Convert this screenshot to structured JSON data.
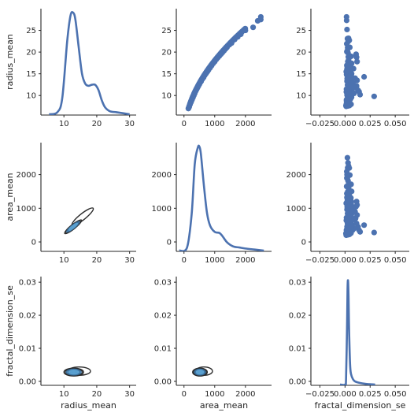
{
  "chart_data": {
    "type": "pairgrid",
    "title": "",
    "variables": [
      "radius_mean",
      "area_mean",
      "fractal_dimension_se"
    ],
    "xlabels": [
      "radius_mean",
      "area_mean",
      "fractal_dimension_se"
    ],
    "ylabels": [
      "radius_mean",
      "area_mean",
      "fractal_dimension_se"
    ],
    "color": "#4c72b0",
    "axis_color": "#262626",
    "xaxes": [
      {
        "lim": [
          3,
          32
        ],
        "ticks": [
          10,
          20,
          30
        ],
        "ticklabels": [
          "10",
          "20",
          "30"
        ]
      },
      {
        "lim": [
          -250,
          2850
        ],
        "ticks": [
          0,
          1000,
          2000
        ],
        "ticklabels": [
          "0",
          "1000",
          "2000"
        ]
      },
      {
        "lim": [
          -0.034,
          0.064
        ],
        "ticks": [
          -0.025,
          0.0,
          0.025,
          0.05
        ],
        "ticklabels": [
          "−0.025",
          "0.000",
          "0.025",
          "0.050"
        ]
      }
    ],
    "yaxes": [
      {
        "lim": [
          5.5,
          30
        ],
        "ticks": [
          10,
          15,
          20,
          25
        ],
        "ticklabels": [
          "10",
          "15",
          "20",
          "25"
        ]
      },
      {
        "lim": [
          -280,
          2950
        ],
        "ticks": [
          0,
          1000,
          2000
        ],
        "ticklabels": [
          "0",
          "1000",
          "2000"
        ]
      },
      {
        "lim": [
          -0.0012,
          0.0317
        ],
        "ticks": [
          0.0,
          0.01,
          0.02,
          0.03
        ],
        "ticklabels": [
          "0.00",
          "0.01",
          "0.02",
          "0.03"
        ]
      }
    ],
    "diagonal_kde": [
      {
        "variable": "radius_mean",
        "x": [
          5.5,
          8,
          9.5,
          11,
          12,
          12.8,
          13.5,
          14.5,
          15.5,
          16.5,
          17.5,
          18.5,
          19.5,
          20.5,
          21.5,
          22.5,
          24,
          26,
          28,
          30
        ],
        "density": [
          0.0,
          0.02,
          0.16,
          0.72,
          0.97,
          1.0,
          0.93,
          0.66,
          0.4,
          0.3,
          0.28,
          0.29,
          0.29,
          0.24,
          0.14,
          0.07,
          0.03,
          0.02,
          0.01,
          0.0
        ]
      },
      {
        "variable": "area_mean",
        "x": [
          -150,
          100,
          250,
          350,
          450,
          500,
          550,
          650,
          750,
          850,
          1000,
          1150,
          1250,
          1400,
          1600,
          1800,
          2000,
          2300,
          2600
        ],
        "density": [
          0.0,
          0.03,
          0.35,
          0.83,
          0.99,
          1.0,
          0.93,
          0.62,
          0.36,
          0.24,
          0.18,
          0.17,
          0.14,
          0.08,
          0.04,
          0.03,
          0.02,
          0.01,
          0.0
        ]
      },
      {
        "variable": "fractal_dimension_se",
        "x": [
          -0.005,
          0.0,
          0.001,
          0.002,
          0.0025,
          0.003,
          0.0035,
          0.004,
          0.005,
          0.006,
          0.008,
          0.01,
          0.015,
          0.02,
          0.025,
          0.03
        ],
        "density": [
          0.0,
          0.0,
          0.05,
          0.55,
          0.92,
          1.0,
          0.85,
          0.55,
          0.2,
          0.1,
          0.05,
          0.03,
          0.015,
          0.007,
          0.003,
          0.0
        ]
      }
    ],
    "scatter_upper": [
      {
        "x_var": "area_mean",
        "y_var": "radius_mean",
        "note": "points follow area ~ pi*r^2",
        "points": [
          [
            143,
            7.0
          ],
          [
            170,
            7.4
          ],
          [
            200,
            8.0
          ],
          [
            230,
            8.5
          ],
          [
            260,
            9.0
          ],
          [
            290,
            9.5
          ],
          [
            320,
            10.0
          ],
          [
            350,
            10.5
          ],
          [
            380,
            11.0
          ],
          [
            410,
            11.4
          ],
          [
            440,
            11.8
          ],
          [
            470,
            12.2
          ],
          [
            500,
            12.6
          ],
          [
            530,
            13.0
          ],
          [
            560,
            13.3
          ],
          [
            600,
            13.8
          ],
          [
            640,
            14.2
          ],
          [
            680,
            14.7
          ],
          [
            720,
            15.1
          ],
          [
            760,
            15.5
          ],
          [
            800,
            15.9
          ],
          [
            850,
            16.4
          ],
          [
            900,
            16.9
          ],
          [
            950,
            17.4
          ],
          [
            1000,
            17.8
          ],
          [
            1050,
            18.3
          ],
          [
            1100,
            18.7
          ],
          [
            1150,
            19.1
          ],
          [
            1200,
            19.5
          ],
          [
            1250,
            19.9
          ],
          [
            1300,
            20.3
          ],
          [
            1350,
            20.7
          ],
          [
            1400,
            21.1
          ],
          [
            1480,
            21.7
          ],
          [
            1550,
            22.1
          ],
          [
            1650,
            22.9
          ],
          [
            1750,
            23.5
          ],
          [
            1850,
            24.1
          ],
          [
            2000,
            25.0
          ],
          [
            2250,
            25.7
          ],
          [
            2400,
            27.2
          ],
          [
            2500,
            28.1
          ],
          [
            2500,
            27.5
          ]
        ]
      },
      {
        "x_var": "fractal_dimension_se",
        "y_var": "radius_mean",
        "points": [
          [
            0.0009,
            7.7
          ],
          [
            0.0015,
            9.0
          ],
          [
            0.002,
            10.1
          ],
          [
            0.0025,
            11.2
          ],
          [
            0.003,
            12.3
          ],
          [
            0.0035,
            13.0
          ],
          [
            0.004,
            14.1
          ],
          [
            0.0012,
            15.5
          ],
          [
            0.0022,
            16.6
          ],
          [
            0.0028,
            17.8
          ],
          [
            0.0033,
            18.9
          ],
          [
            0.0018,
            20.1
          ],
          [
            0.0026,
            21.0
          ],
          [
            0.003,
            22.4
          ],
          [
            0.0024,
            23.1
          ],
          [
            0.002,
            25.2
          ],
          [
            0.0016,
            27.3
          ],
          [
            0.0015,
            28.1
          ],
          [
            0.005,
            12.0
          ],
          [
            0.006,
            13.4
          ],
          [
            0.007,
            11.5
          ],
          [
            0.008,
            12.8
          ],
          [
            0.009,
            10.5
          ],
          [
            0.01,
            14.0
          ],
          [
            0.012,
            17.8
          ],
          [
            0.0115,
            18.8
          ],
          [
            0.011,
            19.5
          ],
          [
            0.012,
            13.5
          ],
          [
            0.013,
            11.2
          ],
          [
            0.0115,
            12.2
          ],
          [
            0.0085,
            16.2
          ],
          [
            0.0075,
            10.6
          ],
          [
            0.0055,
            17.0
          ],
          [
            0.0065,
            15.0
          ],
          [
            0.019,
            14.3
          ],
          [
            0.015,
            10.2
          ],
          [
            0.014,
            10.9
          ],
          [
            0.029,
            9.8
          ],
          [
            0.0045,
            8.8
          ],
          [
            0.0105,
            11.8
          ]
        ]
      },
      {
        "x_var": "fractal_dimension_se",
        "y_var": "area_mean",
        "points": [
          [
            0.0009,
            250
          ],
          [
            0.0015,
            350
          ],
          [
            0.002,
            450
          ],
          [
            0.0025,
            550
          ],
          [
            0.003,
            700
          ],
          [
            0.0035,
            850
          ],
          [
            0.004,
            1000
          ],
          [
            0.0012,
            1150
          ],
          [
            0.0022,
            1300
          ],
          [
            0.0028,
            1500
          ],
          [
            0.0033,
            1700
          ],
          [
            0.0018,
            1900
          ],
          [
            0.0026,
            2200
          ],
          [
            0.003,
            2350
          ],
          [
            0.0024,
            2500
          ],
          [
            0.002,
            2000
          ],
          [
            0.0016,
            1650
          ],
          [
            0.005,
            600
          ],
          [
            0.006,
            750
          ],
          [
            0.007,
            500
          ],
          [
            0.008,
            650
          ],
          [
            0.009,
            400
          ],
          [
            0.01,
            900
          ],
          [
            0.012,
            1100
          ],
          [
            0.0115,
            1200
          ],
          [
            0.011,
            1050
          ],
          [
            0.012,
            800
          ],
          [
            0.013,
            450
          ],
          [
            0.0115,
            550
          ],
          [
            0.0085,
            1000
          ],
          [
            0.0075,
            350
          ],
          [
            0.0055,
            1250
          ],
          [
            0.0065,
            950
          ],
          [
            0.019,
            500
          ],
          [
            0.015,
            300
          ],
          [
            0.014,
            350
          ],
          [
            0.029,
            280
          ],
          [
            0.0045,
            300
          ],
          [
            0.0105,
            700
          ]
        ]
      }
    ],
    "kde_lower": [
      {
        "x_var": "radius_mean",
        "y_var": "area_mean",
        "center": [
          12.8,
          450
        ],
        "spread": [
          2.7,
          210
        ],
        "correlation": 0.99,
        "secondary_center": [
          18.6,
          1050
        ],
        "levels": 8
      },
      {
        "x_var": "radius_mean",
        "y_var": "fractal_dimension_se",
        "center": [
          13.0,
          0.0028
        ],
        "spread": [
          3.0,
          0.0012
        ],
        "correlation": 0.05,
        "levels": 8
      },
      {
        "x_var": "area_mean",
        "y_var": "fractal_dimension_se",
        "center": [
          520,
          0.0028
        ],
        "spread": [
          240,
          0.0012
        ],
        "correlation": 0.05,
        "levels": 8
      }
    ]
  }
}
